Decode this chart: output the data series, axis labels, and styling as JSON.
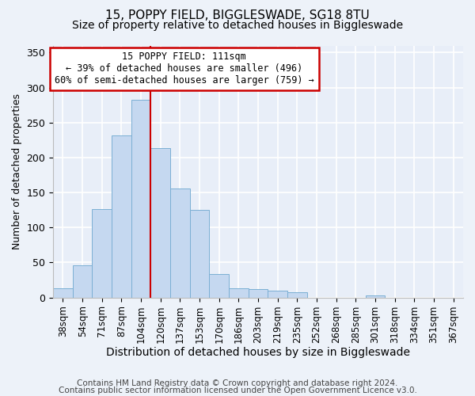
{
  "title": "15, POPPY FIELD, BIGGLESWADE, SG18 8TU",
  "subtitle": "Size of property relative to detached houses in Biggleswade",
  "xlabel": "Distribution of detached houses by size in Biggleswade",
  "ylabel": "Number of detached properties",
  "heights": [
    13,
    46,
    126,
    231,
    282,
    213,
    156,
    125,
    34,
    13,
    12,
    10,
    8,
    0,
    0,
    0,
    3,
    0,
    0,
    0,
    0
  ],
  "categories": [
    "38sqm",
    "54sqm",
    "71sqm",
    "87sqm",
    "104sqm",
    "120sqm",
    "137sqm",
    "153sqm",
    "170sqm",
    "186sqm",
    "203sqm",
    "219sqm",
    "235sqm",
    "252sqm",
    "268sqm",
    "285sqm",
    "301sqm",
    "318sqm",
    "334sqm",
    "351sqm",
    "367sqm"
  ],
  "bar_color": "#c5d8f0",
  "bar_edge_color": "#7bafd4",
  "bg_color": "#e8eef8",
  "fig_bg_color": "#edf2f9",
  "grid_color": "#ffffff",
  "property_line_color": "#cc0000",
  "property_line_x": 4.5,
  "annotation_text": "15 POPPY FIELD: 111sqm\n← 39% of detached houses are smaller (496)\n60% of semi-detached houses are larger (759) →",
  "annotation_box_edge_color": "#cc0000",
  "footer1": "Contains HM Land Registry data © Crown copyright and database right 2024.",
  "footer2": "Contains public sector information licensed under the Open Government Licence v3.0.",
  "ylim_max": 360,
  "title_fontsize": 11,
  "subtitle_fontsize": 10,
  "annot_fontsize": 8.5,
  "ylabel_fontsize": 9,
  "xlabel_fontsize": 10,
  "ytick_fontsize": 9,
  "xtick_fontsize": 8.5,
  "footer_fontsize": 7.5
}
